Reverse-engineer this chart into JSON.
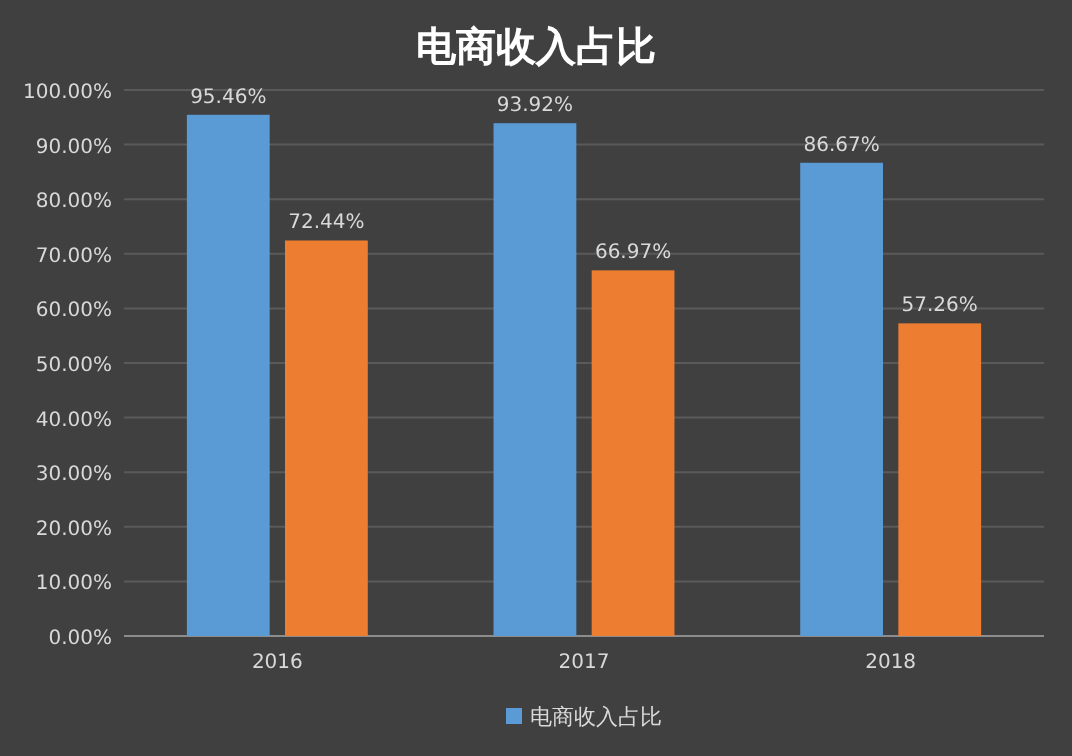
{
  "chart_data": {
    "type": "bar",
    "title": "电商收入占比",
    "categories": [
      "2016",
      "2017",
      "2018"
    ],
    "series": [
      {
        "name": "电商收入占比",
        "color": "#5b9bd5",
        "values": [
          95.46,
          93.92,
          86.67
        ],
        "value_labels": [
          "95.46%",
          "93.92%",
          "86.67%"
        ]
      },
      {
        "color": "#ed7d31",
        "values": [
          72.44,
          66.97,
          57.26
        ],
        "value_labels": [
          "72.44%",
          "66.97%",
          "57.26%"
        ]
      }
    ],
    "ylim": [
      0,
      100
    ],
    "yticks": [
      {
        "value": 0,
        "label": "0.00%"
      },
      {
        "value": 10,
        "label": "10.00%"
      },
      {
        "value": 20,
        "label": "20.00%"
      },
      {
        "value": 30,
        "label": "30.00%"
      },
      {
        "value": 40,
        "label": "40.00%"
      },
      {
        "value": 50,
        "label": "50.00%"
      },
      {
        "value": 60,
        "label": "60.00%"
      },
      {
        "value": 70,
        "label": "70.00%"
      },
      {
        "value": 80,
        "label": "80.00%"
      },
      {
        "value": 90,
        "label": "90.00%"
      },
      {
        "value": 100,
        "label": "100.00%"
      }
    ],
    "grid": "y",
    "legend": "bottom"
  }
}
